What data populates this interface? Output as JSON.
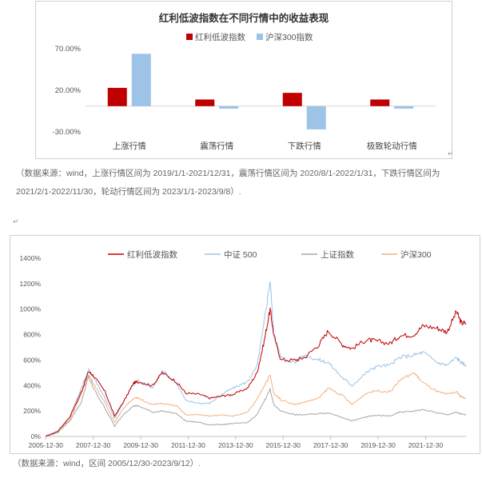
{
  "chart_data": [
    {
      "type": "bar",
      "title": "红利低波指数在不同行情中的收益表现",
      "categories": [
        "上涨行情",
        "震荡行情",
        "下跌行情",
        "极致轮动行情"
      ],
      "series": [
        {
          "name": "红利低波指数",
          "color": "#C00000",
          "values": [
            22,
            8,
            16,
            8
          ]
        },
        {
          "name": "沪深300指数",
          "color": "#9DC3E6",
          "values": [
            63,
            -3,
            -28,
            -3
          ]
        }
      ],
      "yticks": [
        "70.00%",
        "20.00%",
        "-30.00%"
      ],
      "ylim": [
        -30,
        70
      ],
      "legend_position": "top"
    },
    {
      "type": "line",
      "series": [
        {
          "name": "红利低波指数",
          "color": "#C00000",
          "points": [
            [
              2005.99,
              0
            ],
            [
              2006.5,
              40
            ],
            [
              2007.0,
              150
            ],
            [
              2007.5,
              350
            ],
            [
              2007.8,
              510
            ],
            [
              2008.0,
              480
            ],
            [
              2008.5,
              350
            ],
            [
              2008.9,
              160
            ],
            [
              2009.3,
              280
            ],
            [
              2009.7,
              420
            ],
            [
              2009.9,
              430
            ],
            [
              2010.5,
              400
            ],
            [
              2010.9,
              500
            ],
            [
              2011.5,
              430
            ],
            [
              2011.9,
              340
            ],
            [
              2012.5,
              330
            ],
            [
              2012.9,
              300
            ],
            [
              2013.5,
              320
            ],
            [
              2013.9,
              330
            ],
            [
              2014.5,
              380
            ],
            [
              2014.9,
              500
            ],
            [
              2015.2,
              750
            ],
            [
              2015.45,
              1000
            ],
            [
              2015.6,
              800
            ],
            [
              2015.9,
              600
            ],
            [
              2016.5,
              600
            ],
            [
              2016.9,
              620
            ],
            [
              2017.5,
              720
            ],
            [
              2017.9,
              830
            ],
            [
              2018.5,
              720
            ],
            [
              2018.9,
              690
            ],
            [
              2019.5,
              760
            ],
            [
              2019.9,
              750
            ],
            [
              2020.5,
              730
            ],
            [
              2020.9,
              790
            ],
            [
              2021.5,
              800
            ],
            [
              2021.9,
              870
            ],
            [
              2022.5,
              850
            ],
            [
              2022.9,
              820
            ],
            [
              2023.3,
              980
            ],
            [
              2023.5,
              890
            ],
            [
              2023.7,
              890
            ]
          ]
        },
        {
          "name": "中证 500",
          "color": "#9DC3E6",
          "points": [
            [
              2005.99,
              0
            ],
            [
              2006.5,
              40
            ],
            [
              2007.0,
              150
            ],
            [
              2007.5,
              380
            ],
            [
              2007.8,
              520
            ],
            [
              2008.0,
              470
            ],
            [
              2008.5,
              300
            ],
            [
              2008.9,
              140
            ],
            [
              2009.3,
              280
            ],
            [
              2009.7,
              420
            ],
            [
              2009.9,
              440
            ],
            [
              2010.5,
              380
            ],
            [
              2010.9,
              520
            ],
            [
              2011.5,
              420
            ],
            [
              2011.9,
              280
            ],
            [
              2012.5,
              260
            ],
            [
              2012.9,
              260
            ],
            [
              2013.5,
              340
            ],
            [
              2013.9,
              380
            ],
            [
              2014.5,
              430
            ],
            [
              2014.9,
              550
            ],
            [
              2015.2,
              900
            ],
            [
              2015.45,
              1230
            ],
            [
              2015.6,
              800
            ],
            [
              2015.9,
              620
            ],
            [
              2016.5,
              580
            ],
            [
              2016.9,
              640
            ],
            [
              2017.5,
              600
            ],
            [
              2017.9,
              580
            ],
            [
              2018.5,
              460
            ],
            [
              2018.9,
              400
            ],
            [
              2019.5,
              500
            ],
            [
              2019.9,
              550
            ],
            [
              2020.5,
              560
            ],
            [
              2020.9,
              620
            ],
            [
              2021.5,
              640
            ],
            [
              2021.9,
              660
            ],
            [
              2022.5,
              580
            ],
            [
              2022.9,
              560
            ],
            [
              2023.3,
              620
            ],
            [
              2023.5,
              580
            ],
            [
              2023.7,
              560
            ]
          ]
        },
        {
          "name": "上证指数",
          "color": "#A6A6A6",
          "points": [
            [
              2005.99,
              0
            ],
            [
              2006.5,
              30
            ],
            [
              2007.0,
              120
            ],
            [
              2007.5,
              270
            ],
            [
              2007.8,
              470
            ],
            [
              2008.0,
              380
            ],
            [
              2008.5,
              220
            ],
            [
              2008.9,
              80
            ],
            [
              2009.3,
              180
            ],
            [
              2009.7,
              240
            ],
            [
              2009.9,
              240
            ],
            [
              2010.5,
              190
            ],
            [
              2010.9,
              200
            ],
            [
              2011.5,
              180
            ],
            [
              2011.9,
              120
            ],
            [
              2012.5,
              110
            ],
            [
              2012.9,
              90
            ],
            [
              2013.5,
              95
            ],
            [
              2013.9,
              100
            ],
            [
              2014.5,
              110
            ],
            [
              2014.9,
              170
            ],
            [
              2015.2,
              280
            ],
            [
              2015.45,
              370
            ],
            [
              2015.6,
              250
            ],
            [
              2015.9,
              200
            ],
            [
              2016.5,
              170
            ],
            [
              2016.9,
              170
            ],
            [
              2017.5,
              180
            ],
            [
              2017.9,
              185
            ],
            [
              2018.5,
              150
            ],
            [
              2018.9,
              120
            ],
            [
              2019.5,
              155
            ],
            [
              2019.9,
              165
            ],
            [
              2020.5,
              160
            ],
            [
              2020.9,
              190
            ],
            [
              2021.5,
              200
            ],
            [
              2021.9,
              210
            ],
            [
              2022.5,
              185
            ],
            [
              2022.9,
              170
            ],
            [
              2023.3,
              190
            ],
            [
              2023.5,
              175
            ],
            [
              2023.7,
              170
            ]
          ]
        },
        {
          "name": "沪深300",
          "color": "#F4B183",
          "points": [
            [
              2005.99,
              0
            ],
            [
              2006.5,
              40
            ],
            [
              2007.0,
              130
            ],
            [
              2007.5,
              330
            ],
            [
              2007.8,
              490
            ],
            [
              2008.0,
              420
            ],
            [
              2008.5,
              260
            ],
            [
              2008.9,
              110
            ],
            [
              2009.3,
              230
            ],
            [
              2009.7,
              300
            ],
            [
              2009.9,
              300
            ],
            [
              2010.5,
              250
            ],
            [
              2010.9,
              260
            ],
            [
              2011.5,
              240
            ],
            [
              2011.9,
              170
            ],
            [
              2012.5,
              170
            ],
            [
              2012.9,
              160
            ],
            [
              2013.5,
              170
            ],
            [
              2013.9,
              160
            ],
            [
              2014.5,
              190
            ],
            [
              2014.9,
              290
            ],
            [
              2015.2,
              400
            ],
            [
              2015.45,
              480
            ],
            [
              2015.6,
              340
            ],
            [
              2015.9,
              290
            ],
            [
              2016.5,
              250
            ],
            [
              2016.9,
              270
            ],
            [
              2017.5,
              300
            ],
            [
              2017.9,
              380
            ],
            [
              2018.5,
              320
            ],
            [
              2018.9,
              250
            ],
            [
              2019.5,
              340
            ],
            [
              2019.9,
              360
            ],
            [
              2020.5,
              350
            ],
            [
              2020.9,
              440
            ],
            [
              2021.5,
              500
            ],
            [
              2021.9,
              420
            ],
            [
              2022.5,
              350
            ],
            [
              2022.9,
              330
            ],
            [
              2023.3,
              350
            ],
            [
              2023.5,
              310
            ],
            [
              2023.7,
              300
            ]
          ]
        }
      ],
      "yticks": [
        "0%",
        "200%",
        "400%",
        "600%",
        "800%",
        "1000%",
        "1200%",
        "1400%"
      ],
      "ylim": [
        0,
        1400
      ],
      "xticks": [
        "2005-12-30",
        "2007-12-30",
        "2009-12-30",
        "2011-12-30",
        "2013-12-30",
        "2015-12-30",
        "2017-12-30",
        "2019-12-30",
        "2021-12-30"
      ],
      "xlim": [
        2005.99,
        2023.7
      ],
      "legend_position": "top"
    }
  ],
  "notes": {
    "source1_line1": "（数据来源：wind，上涨行情区间为 2019/1/1-2021/12/31，震荡行情区间为 2020/8/1-2022/1/31，下跌行情区间为",
    "source1_line2": "2021/2/1-2022/11/30，轮动行情区间为 2023/1/1-2023/9/8）.",
    "return_mark": "↵",
    "source2": "（数据来源：wind，区间 2005/12/30-2023/9/12）."
  }
}
